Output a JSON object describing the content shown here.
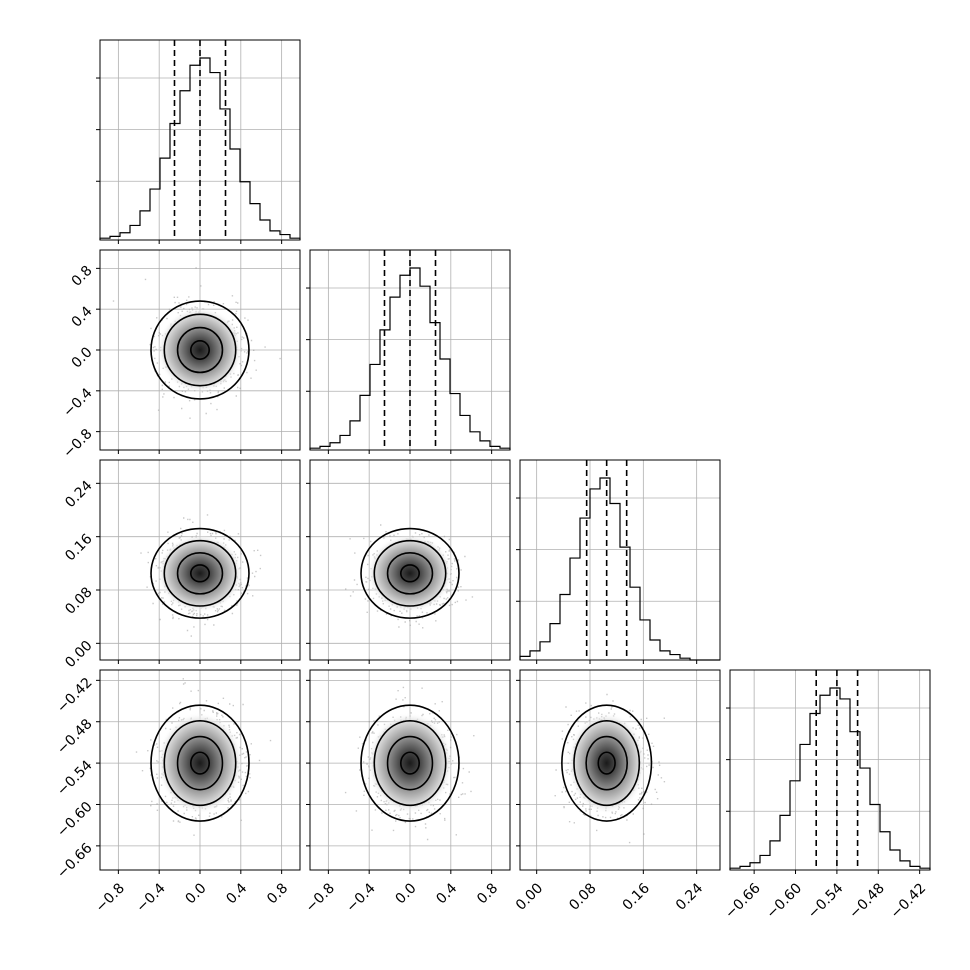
{
  "chart_data": {
    "type": "corner",
    "variables": [
      {
        "range": [
          -0.98,
          0.98
        ],
        "ticks": [
          -0.8,
          -0.4,
          0.0,
          0.4,
          0.8
        ],
        "tick_labels": [
          "−0.8",
          "−0.4",
          "0.0",
          "0.4",
          "0.8"
        ],
        "quantiles": [
          -0.25,
          0.0,
          0.25
        ]
      },
      {
        "range": [
          -0.98,
          0.98
        ],
        "ticks": [
          -0.8,
          -0.4,
          0.0,
          0.4,
          0.8
        ],
        "tick_labels": [
          "−0.8",
          "−0.4",
          "0.0",
          "0.4",
          "0.8"
        ],
        "quantiles": [
          -0.25,
          0.0,
          0.25
        ]
      },
      {
        "range": [
          -0.025,
          0.275
        ],
        "ticks": [
          0.0,
          0.08,
          0.16,
          0.24
        ],
        "tick_labels": [
          "0.00",
          "0.08",
          "0.16",
          "0.24"
        ],
        "quantiles": [
          0.075,
          0.105,
          0.135
        ]
      },
      {
        "range": [
          -0.695,
          -0.405
        ],
        "ticks": [
          -0.66,
          -0.6,
          -0.54,
          -0.48,
          -0.42
        ],
        "tick_labels": [
          "−0.66",
          "−0.60",
          "−0.54",
          "−0.48",
          "−0.42"
        ],
        "quantiles": [
          -0.57,
          -0.54,
          -0.51
        ]
      }
    ],
    "histograms": [
      [
        0.01,
        0.02,
        0.04,
        0.08,
        0.16,
        0.28,
        0.45,
        0.64,
        0.82,
        0.96,
        1.0,
        0.92,
        0.72,
        0.5,
        0.32,
        0.2,
        0.11,
        0.05,
        0.03,
        0.01
      ],
      [
        0.01,
        0.02,
        0.04,
        0.08,
        0.16,
        0.3,
        0.47,
        0.66,
        0.84,
        0.96,
        1.0,
        0.9,
        0.7,
        0.5,
        0.31,
        0.19,
        0.1,
        0.05,
        0.02,
        0.01
      ],
      [
        0.02,
        0.05,
        0.1,
        0.2,
        0.36,
        0.56,
        0.78,
        0.94,
        1.0,
        0.86,
        0.62,
        0.4,
        0.22,
        0.11,
        0.05,
        0.03,
        0.01,
        0.0,
        0.0,
        0.0
      ],
      [
        0.01,
        0.02,
        0.04,
        0.08,
        0.16,
        0.3,
        0.49,
        0.69,
        0.86,
        0.96,
        1.0,
        0.94,
        0.76,
        0.56,
        0.36,
        0.21,
        0.11,
        0.05,
        0.02,
        0.01
      ]
    ],
    "bivariate_sigma": [
      0.2,
      0.2,
      0.028,
      0.035
    ],
    "grid": true,
    "line_style": "dashed"
  }
}
